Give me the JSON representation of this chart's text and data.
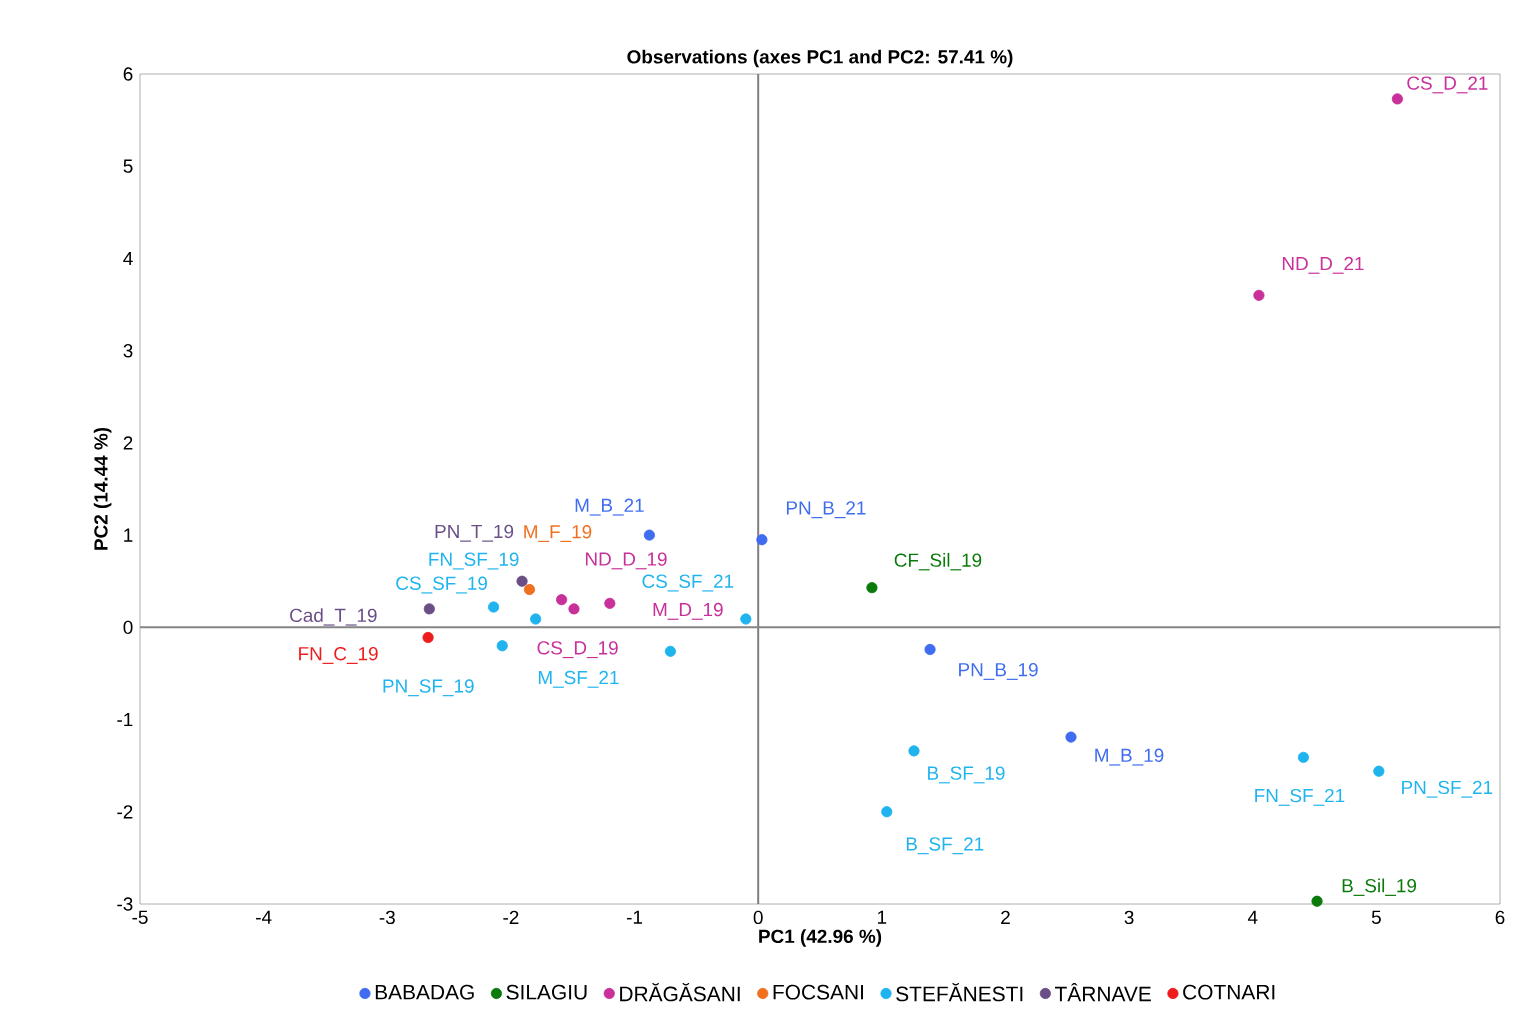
{
  "chart_data": {
    "type": "scatter",
    "title": "Observations (axes PC1 and PC2: 57.41 %)",
    "xlabel": "PC1 (42.96 %)",
    "ylabel": "PC2 (14.44 %)",
    "xlim": [
      -5,
      6
    ],
    "ylim": [
      -3,
      6
    ],
    "xticks": [
      -5,
      -4,
      -3,
      -2,
      -1,
      0,
      1,
      2,
      3,
      4,
      5,
      6
    ],
    "yticks": [
      -3,
      -2,
      -1,
      0,
      1,
      2,
      3,
      4,
      5,
      6
    ],
    "grid": false,
    "legend": "bottom",
    "ref_lines": [
      {
        "axis": "x",
        "value": 0,
        "color": "#7f7f7f"
      },
      {
        "axis": "y",
        "value": 0,
        "color": "#858585"
      }
    ],
    "series": [
      {
        "name": "BABADAG",
        "color": "#3f6cf0",
        "x": [
          -0.88,
          0.03,
          1.39,
          2.53
        ],
        "values": [
          1.0,
          0.95,
          -0.24,
          -1.19
        ]
      },
      {
        "name": "SILAGIU",
        "color": "#0a7a0a",
        "x": [
          0.92,
          4.52
        ],
        "values": [
          0.43,
          -2.97
        ]
      },
      {
        "name": "DRĂGĂSANI",
        "color": "#c8309a",
        "x": [
          5.17,
          4.05,
          -1.59,
          -1.49,
          -1.2
        ],
        "values": [
          5.73,
          3.6,
          0.3,
          0.2,
          0.26
        ]
      },
      {
        "name": "FOCSANI",
        "color": "#f07020",
        "x": [
          -1.85
        ],
        "values": [
          0.41
        ]
      },
      {
        "name": "STEFĂNESTI",
        "color": "#20b4ee",
        "x": [
          -2.14,
          -1.8,
          -2.07,
          -0.71,
          -0.1,
          1.26,
          1.04,
          4.41,
          5.02
        ],
        "values": [
          0.22,
          0.09,
          -0.2,
          -0.26,
          0.09,
          -1.34,
          -2.0,
          -1.41,
          -1.56
        ]
      },
      {
        "name": "TÂRNAVE",
        "color": "#6a4f86",
        "x": [
          -1.91,
          -2.66
        ],
        "values": [
          0.5,
          0.2
        ]
      },
      {
        "name": "COTNARI",
        "color": "#ee1c1c",
        "x": [
          -2.67
        ],
        "values": [
          -0.11
        ]
      }
    ],
    "annotations": [
      {
        "text": "M_B_21",
        "x": -0.88,
        "y": 1.0
      },
      {
        "text": "PN_B_21",
        "x": 0.03,
        "y": 0.95
      },
      {
        "text": "PN_B_19",
        "x": 1.39,
        "y": -0.24
      },
      {
        "text": "M_B_19",
        "x": 2.53,
        "y": -1.19
      },
      {
        "text": "CF_Sil_19",
        "x": 0.92,
        "y": 0.43
      },
      {
        "text": "B_Sil_19",
        "x": 4.52,
        "y": -2.97
      },
      {
        "text": "CS_D_21",
        "x": 5.17,
        "y": 5.73
      },
      {
        "text": "ND_D_21",
        "x": 4.05,
        "y": 3.6
      },
      {
        "text": "CS_D_19",
        "x": -1.59,
        "y": 0.3
      },
      {
        "text": "ND_D_19",
        "x": -1.49,
        "y": 0.2
      },
      {
        "text": "M_D_19",
        "x": -1.2,
        "y": 0.26
      },
      {
        "text": "M_F_19",
        "x": -1.85,
        "y": 0.41
      },
      {
        "text": "CS_SF_19",
        "x": -2.14,
        "y": 0.22
      },
      {
        "text": "FN_SF_19",
        "x": -1.8,
        "y": 0.09
      },
      {
        "text": "PN_SF_19",
        "x": -2.07,
        "y": -0.2
      },
      {
        "text": "M_SF_21",
        "x": -0.71,
        "y": -0.26
      },
      {
        "text": "CS_SF_21",
        "x": -0.1,
        "y": 0.09
      },
      {
        "text": "B_SF_19",
        "x": 1.26,
        "y": -1.34
      },
      {
        "text": "B_SF_21",
        "x": 1.04,
        "y": -2.0
      },
      {
        "text": "FN_SF_21",
        "x": 4.41,
        "y": -1.41
      },
      {
        "text": "PN_SF_21",
        "x": 5.02,
        "y": -1.56
      },
      {
        "text": "PN_T_19",
        "x": -1.91,
        "y": 0.5
      },
      {
        "text": "Cad_T_19",
        "x": -2.66,
        "y": 0.2
      },
      {
        "text": "FN_C_19",
        "x": -2.67,
        "y": -0.11
      }
    ]
  }
}
